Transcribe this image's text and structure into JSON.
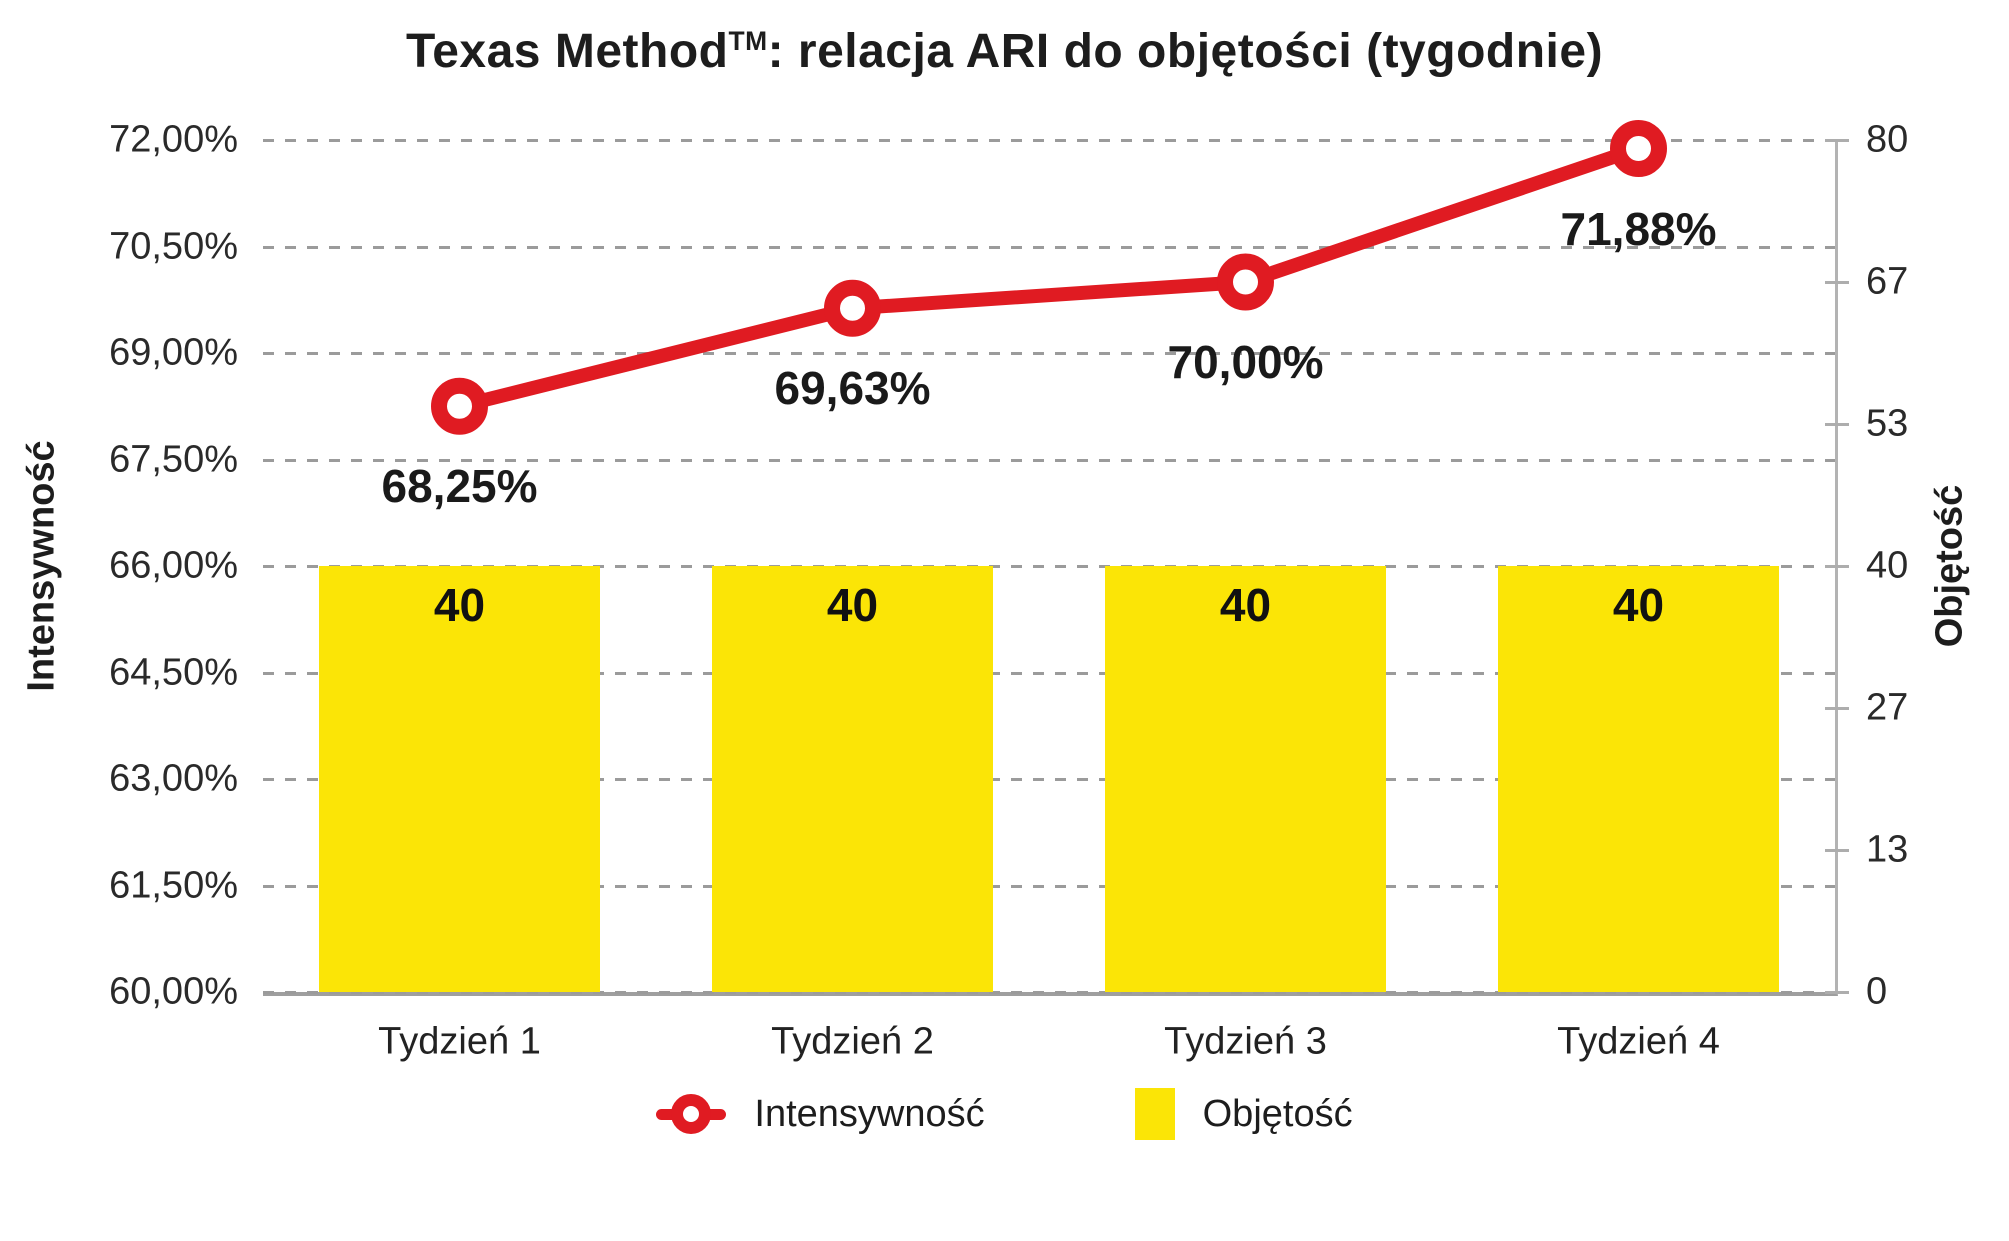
{
  "title": {
    "full": "Texas Method™: relacja ARI do objętości (tygodnie)",
    "main": "Texas Method",
    "tm": "TM",
    "rest": ": relacja ARI do objętości (tygodnie)"
  },
  "chart_data": {
    "type": "combo (line + bar)",
    "title": "Texas Method™: relacja ARI do objętości (tygodnie)",
    "categories": [
      "Tydzień 1",
      "Tydzień 2",
      "Tydzień 3",
      "Tydzień 4"
    ],
    "series": [
      {
        "name": "Intensywność",
        "type": "line",
        "axis": "left",
        "color": "#E01B22",
        "values": [
          68.25,
          69.63,
          70.0,
          71.88
        ],
        "point_labels": [
          "68,25%",
          "69,63%",
          "70,00%",
          "71,88%"
        ]
      },
      {
        "name": "Objętość",
        "type": "bar",
        "axis": "right",
        "color": "#FBE506",
        "values": [
          40,
          40,
          40,
          40
        ],
        "point_labels": [
          "40",
          "40",
          "40",
          "40"
        ]
      }
    ],
    "left_axis": {
      "title": "Intensywność",
      "min": 60,
      "max": 72,
      "tick_labels": [
        "72,00%",
        "70,50%",
        "69,00%",
        "67,50%",
        "66,00%",
        "64,50%",
        "63,00%",
        "61,50%",
        "60,00%"
      ]
    },
    "right_axis": {
      "title": "Objętość",
      "min": 0,
      "max": 80,
      "tick_labels": [
        "80",
        "67",
        "53",
        "40",
        "27",
        "13",
        "0"
      ]
    },
    "legend": [
      {
        "label": "Intensywność",
        "marker": "red-line-with-ring",
        "color": "#E01B22"
      },
      {
        "label": "Objętość",
        "marker": "yellow-square",
        "color": "#FBE506"
      }
    ],
    "grid": "horizontal dashed gray lines",
    "legend_position": "bottom-center"
  }
}
